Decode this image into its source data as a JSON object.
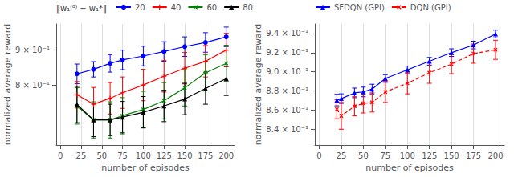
{
  "chart_data": [
    {
      "type": "line",
      "x": [
        20,
        40,
        60,
        75,
        100,
        125,
        150,
        175,
        200
      ],
      "series": [
        {
          "name": "20",
          "color": "blue",
          "marker": "circle",
          "line_style": "solid",
          "values": [
            0.832,
            0.845,
            0.862,
            0.872,
            0.883,
            0.896,
            0.91,
            0.922,
            0.938
          ],
          "yerr": [
            0.028,
            0.022,
            0.025,
            0.028,
            0.028,
            0.028,
            0.028,
            0.028,
            0.028
          ]
        },
        {
          "name": "40",
          "color": "red",
          "marker": "plus",
          "line_style": "solid",
          "values": [
            0.772,
            0.745,
            0.762,
            0.778,
            0.8,
            0.825,
            0.848,
            0.868,
            0.9
          ],
          "yerr": [
            0.038,
            0.048,
            0.045,
            0.045,
            0.045,
            0.045,
            0.045,
            0.045,
            0.048
          ]
        },
        {
          "name": "60",
          "color": "green",
          "marker": "x",
          "line_style": "solid",
          "values": [
            0.74,
            0.7,
            0.7,
            0.712,
            0.73,
            0.755,
            0.792,
            0.835,
            0.862
          ],
          "yerr": [
            0.052,
            0.052,
            0.052,
            0.052,
            0.052,
            0.052,
            0.052,
            0.052,
            0.052
          ]
        },
        {
          "name": "80",
          "color": "black",
          "marker": "triangle",
          "line_style": "solid",
          "values": [
            0.744,
            0.7,
            0.7,
            0.708,
            0.722,
            0.74,
            0.76,
            0.79,
            0.818
          ],
          "yerr": [
            0.052,
            0.048,
            0.045,
            0.045,
            0.045,
            0.045,
            0.045,
            0.045,
            0.048
          ]
        }
      ],
      "xlabel": "number of episodes",
      "ylabel": "normalized average reward",
      "legend_title": "‖w₁⁽⁰⁾ − w₁*‖",
      "xlim": [
        -5,
        210
      ],
      "xticks": [
        0,
        25,
        50,
        75,
        100,
        125,
        150,
        175,
        200
      ],
      "ylim": [
        0.628,
        0.975
      ],
      "yticks": [
        {
          "value": 0.8,
          "label": "8 × 10⁻¹"
        },
        {
          "value": 0.9,
          "label": "9 × 10⁻¹"
        }
      ],
      "grid": "x",
      "legend": "upper left"
    },
    {
      "type": "line",
      "x": [
        20,
        25,
        40,
        50,
        60,
        75,
        100,
        125,
        150,
        175,
        200
      ],
      "series": [
        {
          "name": "SFDQN (GPI)",
          "color": "blue",
          "marker": "triangle",
          "line_style": "solid",
          "values": [
            0.8705,
            0.872,
            0.878,
            0.879,
            0.882,
            0.893,
            0.902,
            0.911,
            0.92,
            0.928,
            0.9395
          ],
          "yerr": [
            0.006,
            0.005,
            0.005,
            0.005,
            0.005,
            0.004,
            0.004,
            0.004,
            0.004,
            0.004,
            0.004
          ]
        },
        {
          "name": "DQN (GPI)",
          "color": "red",
          "marker": "x",
          "line_style": "dashed",
          "values": [
            0.861,
            0.854,
            0.864,
            0.867,
            0.868,
            0.879,
            0.888,
            0.899,
            0.908,
            0.919,
            0.923
          ],
          "yerr": [
            0.01,
            0.014,
            0.01,
            0.01,
            0.01,
            0.011,
            0.011,
            0.011,
            0.01,
            0.01,
            0.01
          ]
        }
      ],
      "xlabel": "number of episodes",
      "ylabel": "normalized average reward",
      "xlim": [
        -5,
        210
      ],
      "xticks": [
        0,
        25,
        50,
        75,
        100,
        125,
        150,
        175,
        200
      ],
      "ylim": [
        0.8235,
        0.95
      ],
      "yticks": [
        {
          "value": 0.84,
          "label": "8.4 × 10⁻¹"
        },
        {
          "value": 0.86,
          "label": "8.6 × 10⁻¹"
        },
        {
          "value": 0.88,
          "label": "8.8 × 10⁻¹"
        },
        {
          "value": 0.9,
          "label": "9.0 × 10⁻¹"
        },
        {
          "value": 0.92,
          "label": "9.2 × 10⁻¹"
        },
        {
          "value": 0.94,
          "label": "9.4 × 10⁻¹"
        }
      ],
      "grid": "x",
      "legend": "upper left"
    }
  ]
}
